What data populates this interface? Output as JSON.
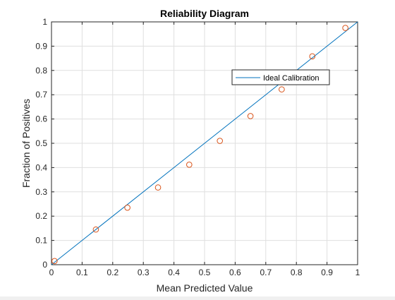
{
  "chart_data": {
    "type": "scatter",
    "title": "Reliability Diagram",
    "xlabel": "Mean Predicted Value",
    "ylabel": "Fraction of Positives",
    "xlim": [
      0,
      1
    ],
    "ylim": [
      0,
      1
    ],
    "grid": true,
    "xticks": [
      "0",
      "0.1",
      "0.2",
      "0.3",
      "0.4",
      "0.5",
      "0.6",
      "0.7",
      "0.8",
      "0.9",
      "1"
    ],
    "yticks": [
      "0",
      "0.1",
      "0.2",
      "0.3",
      "0.4",
      "0.5",
      "0.6",
      "0.7",
      "0.8",
      "0.9",
      "1"
    ],
    "series": [
      {
        "name": "Ideal Calibration",
        "kind": "line",
        "color": "#0072BD",
        "points": [
          [
            0,
            0
          ],
          [
            1,
            1
          ]
        ]
      },
      {
        "kind": "markers",
        "marker": "circle-open",
        "color": "#D95319",
        "points": [
          [
            0.01,
            0.015
          ],
          [
            0.145,
            0.145
          ],
          [
            0.248,
            0.235
          ],
          [
            0.348,
            0.318
          ],
          [
            0.45,
            0.412
          ],
          [
            0.55,
            0.51
          ],
          [
            0.65,
            0.612
          ],
          [
            0.752,
            0.722
          ],
          [
            0.852,
            0.858
          ],
          [
            0.96,
            0.975
          ]
        ]
      }
    ],
    "legend": {
      "position": "right",
      "entries": [
        "Ideal Calibration"
      ]
    }
  }
}
